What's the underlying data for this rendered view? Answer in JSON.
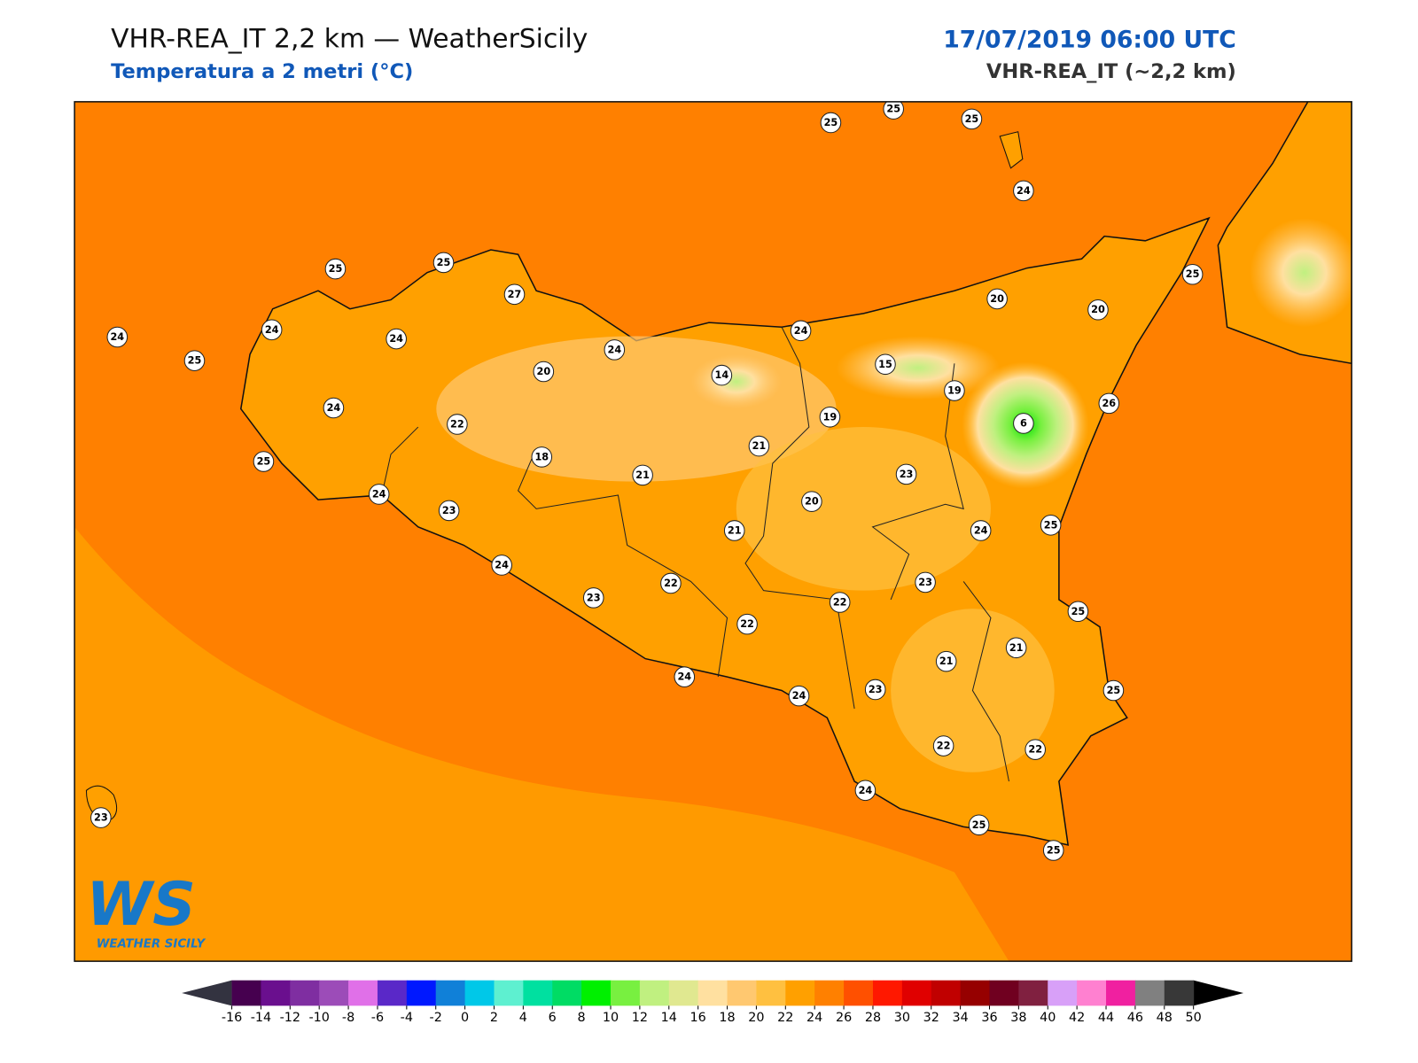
{
  "header": {
    "title": "VHR-REA_IT 2,2 km — WeatherSicily",
    "subtitle": "Temperatura a 2 metri (°C)",
    "datetime": "17/07/2019 06:00 UTC",
    "model": "VHR-REA_IT (~2,2 km)"
  },
  "stations": [
    25,
    25,
    25,
    24,
    25,
    25,
    27,
    24,
    24,
    25,
    24,
    24,
    24,
    20,
    20,
    25,
    20,
    14,
    15,
    19,
    26,
    24,
    22,
    19,
    6,
    21,
    18,
    21,
    23,
    25,
    24,
    23,
    20,
    21,
    24,
    25,
    24,
    22,
    23,
    23,
    22,
    22,
    25,
    21,
    21,
    24,
    24,
    23,
    25,
    22,
    22,
    24,
    25,
    25,
    23
  ],
  "colorbar": {
    "ticks": [
      -16,
      -14,
      -12,
      -10,
      -8,
      -6,
      -4,
      -2,
      0,
      2,
      4,
      6,
      8,
      10,
      12,
      14,
      16,
      18,
      20,
      22,
      24,
      26,
      28,
      30,
      32,
      34,
      36,
      38,
      40,
      42,
      44,
      46,
      48,
      50
    ],
    "colors": [
      "#46004f",
      "#6a0f8e",
      "#7f2ea1",
      "#9c4cb8",
      "#e070e8",
      "#5a28c8",
      "#0018ff",
      "#1080d8",
      "#00c8e8",
      "#5ef0d0",
      "#00e0a0",
      "#00dc64",
      "#00f000",
      "#78f040",
      "#c0f080",
      "#e0e890",
      "#ffe0a0",
      "#ffc870",
      "#ffc040",
      "#ffa000",
      "#ff8000",
      "#ff5000",
      "#ff1800",
      "#e00000",
      "#c00000",
      "#960000",
      "#700020",
      "#802040",
      "#d8a0f8",
      "#ff80d0",
      "#f020a0",
      "#808080",
      "#383838"
    ],
    "under_color": "#333340",
    "over_color": "#000000"
  },
  "logo": {
    "mark": "WS",
    "text": "WEATHER SICILY"
  }
}
